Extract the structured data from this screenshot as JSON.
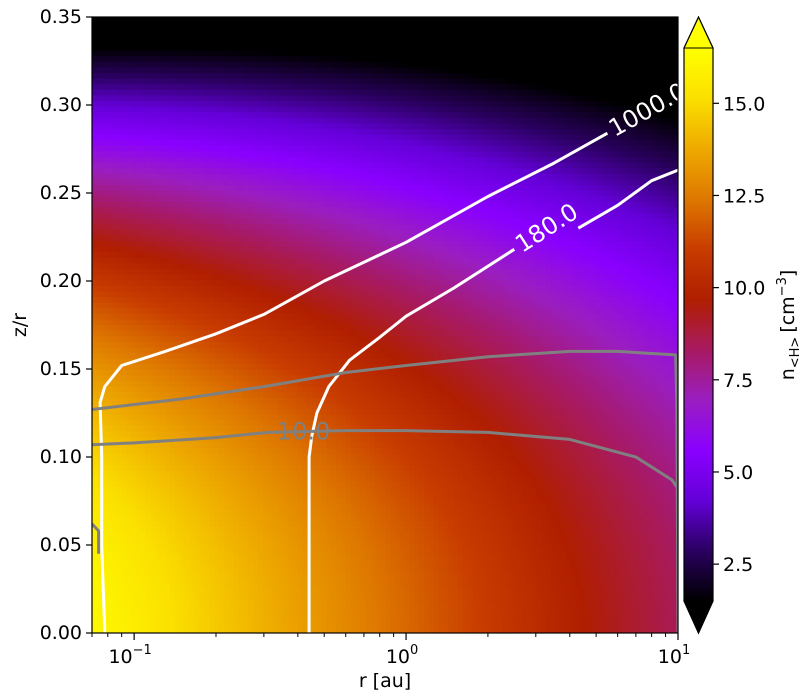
{
  "chart_data": {
    "type": "heatmap",
    "title": "",
    "xlabel": "r [au]",
    "ylabel": "z/r",
    "xscale": "log",
    "xlim": [
      0.07,
      10
    ],
    "ylim": [
      0,
      0.35
    ],
    "x_ticks": [
      {
        "value": 0.1,
        "base": "10",
        "exp": "−1"
      },
      {
        "value": 1,
        "base": "10",
        "exp": "0"
      },
      {
        "value": 10,
        "base": "10",
        "exp": "1"
      }
    ],
    "y_ticks": [
      {
        "value": 0.0,
        "label": "0.00"
      },
      {
        "value": 0.05,
        "label": "0.05"
      },
      {
        "value": 0.1,
        "label": "0.10"
      },
      {
        "value": 0.15,
        "label": "0.15"
      },
      {
        "value": 0.2,
        "label": "0.20"
      },
      {
        "value": 0.25,
        "label": "0.25"
      },
      {
        "value": 0.3,
        "label": "0.30"
      },
      {
        "value": 0.35,
        "label": "0.35"
      }
    ],
    "colorbar": {
      "label_main": "n",
      "label_sub": "<H>",
      "label_unit": "[cm",
      "label_sup": "−3",
      "label_end": "]",
      "range": [
        1.5,
        16.5
      ],
      "extend": "both",
      "ticks": [
        {
          "value": 2.5,
          "label": "2.5"
        },
        {
          "value": 5.0,
          "label": "5.0"
        },
        {
          "value": 7.5,
          "label": "7.5"
        },
        {
          "value": 10.0,
          "label": "10.0"
        },
        {
          "value": 12.5,
          "label": "12.5"
        },
        {
          "value": 15.0,
          "label": "15.0"
        }
      ],
      "colormap": [
        "#000000",
        "#2a0060",
        "#6400d8",
        "#8a00ff",
        "#9a1ec0",
        "#a81a60",
        "#b01e00",
        "#c83c00",
        "#de7800",
        "#eeaa00",
        "#fbe000",
        "#ffff00"
      ]
    },
    "density_field": {
      "value_at_inner_midplane": 16.2,
      "value_at_outer_midplane": 10.3,
      "value_at_outer_surface": 4.4,
      "value_at_inner_surface": 1.5
    },
    "contours": [
      {
        "label": "1000.0",
        "color": "#ffffff",
        "points": [
          [
            0.078,
            0.0
          ],
          [
            0.076,
            0.05
          ],
          [
            0.076,
            0.1
          ],
          [
            0.075,
            0.131
          ],
          [
            0.078,
            0.14
          ],
          [
            0.09,
            0.152
          ],
          [
            0.13,
            0.16
          ],
          [
            0.2,
            0.17
          ],
          [
            0.3,
            0.181
          ],
          [
            0.5,
            0.2
          ],
          [
            1.0,
            0.222
          ],
          [
            2.0,
            0.248
          ],
          [
            3.5,
            0.267
          ],
          [
            5.5,
            0.284
          ]
        ]
      },
      {
        "label": "180.0",
        "color": "#ffffff",
        "points": [
          [
            0.44,
            0.0
          ],
          [
            0.44,
            0.05
          ],
          [
            0.44,
            0.1
          ],
          [
            0.45,
            0.112
          ],
          [
            0.47,
            0.125
          ],
          [
            0.52,
            0.14
          ],
          [
            0.62,
            0.155
          ],
          [
            0.8,
            0.168
          ],
          [
            1.0,
            0.18
          ],
          [
            1.5,
            0.196
          ],
          [
            2.5,
            0.218
          ]
        ]
      },
      {
        "label": "",
        "color": "#ffffff",
        "points": [
          [
            4.3,
            0.23
          ],
          [
            6.0,
            0.243
          ],
          [
            8.0,
            0.257
          ],
          [
            10.0,
            0.263
          ]
        ]
      },
      {
        "label": "10.0",
        "color": "#808080",
        "points": [
          [
            0.07,
            0.107
          ],
          [
            0.1,
            0.108
          ],
          [
            0.2,
            0.111
          ],
          [
            0.31,
            0.114
          ],
          [
            0.6,
            0.115
          ],
          [
            1.0,
            0.115
          ],
          [
            2.0,
            0.114
          ],
          [
            4.0,
            0.11
          ],
          [
            7.0,
            0.1
          ],
          [
            9.5,
            0.087
          ],
          [
            10.0,
            0.082
          ]
        ]
      },
      {
        "label": "",
        "color": "#808080",
        "points": [
          [
            0.07,
            0.127
          ],
          [
            0.15,
            0.133
          ],
          [
            0.3,
            0.14
          ],
          [
            0.6,
            0.148
          ],
          [
            1.0,
            0.152
          ],
          [
            2.0,
            0.157
          ],
          [
            4.0,
            0.16
          ],
          [
            6.0,
            0.16
          ],
          [
            9.8,
            0.158
          ],
          [
            9.9,
            0.13
          ],
          [
            9.95,
            0.07
          ],
          [
            10.0,
            0.0
          ]
        ]
      },
      {
        "label": "",
        "color": "#808080",
        "points": [
          [
            0.07,
            0.062
          ],
          [
            0.074,
            0.058
          ],
          [
            0.074,
            0.045
          ]
        ]
      }
    ]
  }
}
